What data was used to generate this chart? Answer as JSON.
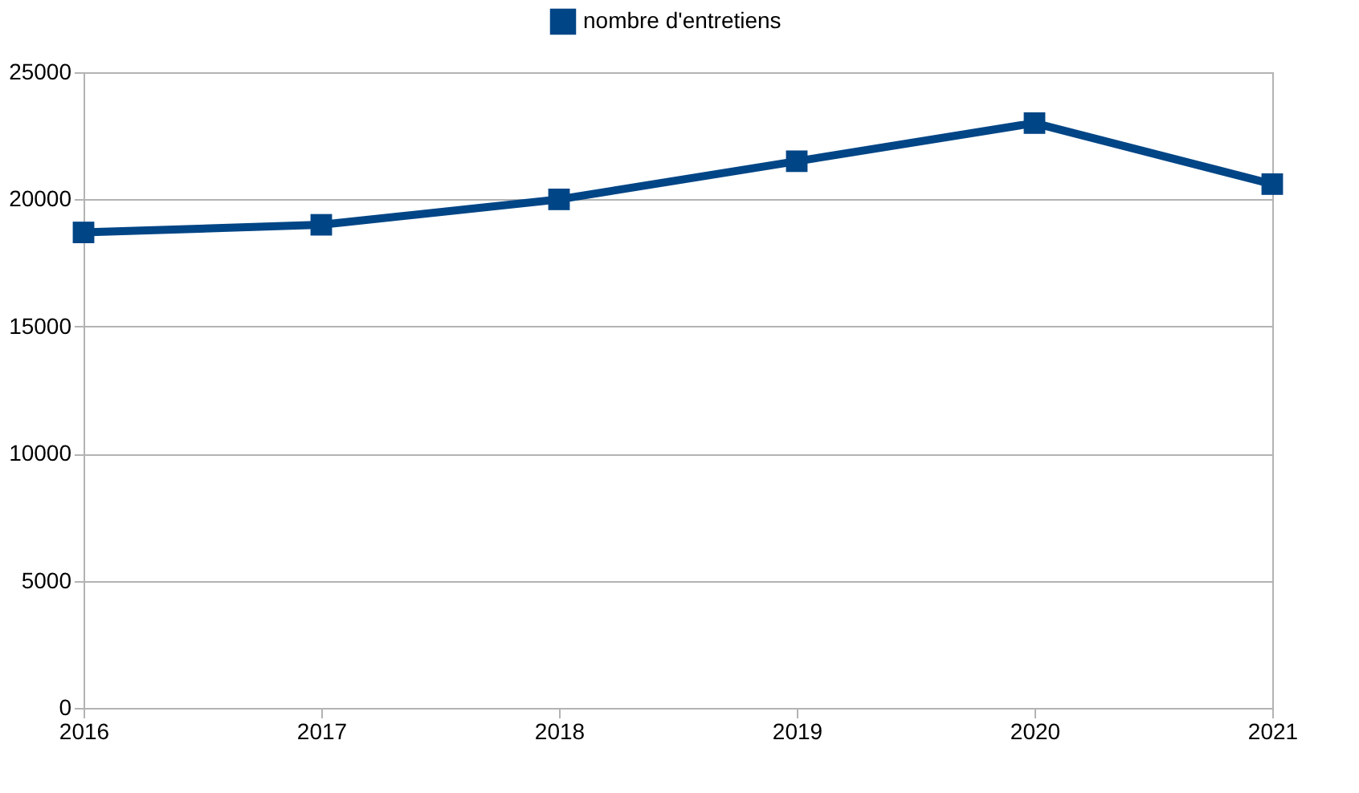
{
  "chart_data": {
    "type": "line",
    "categories": [
      "2016",
      "2017",
      "2018",
      "2019",
      "2020",
      "2021"
    ],
    "series": [
      {
        "name": "nombre d'entretiens",
        "color": "#004586",
        "values": [
          18700,
          19000,
          20000,
          21500,
          23000,
          20600
        ]
      }
    ],
    "ylim": [
      0,
      25000
    ],
    "yticks": [
      0,
      5000,
      10000,
      15000,
      20000,
      25000
    ],
    "grid": "y",
    "legend": "top",
    "marker": "square",
    "line_style": "solid"
  }
}
